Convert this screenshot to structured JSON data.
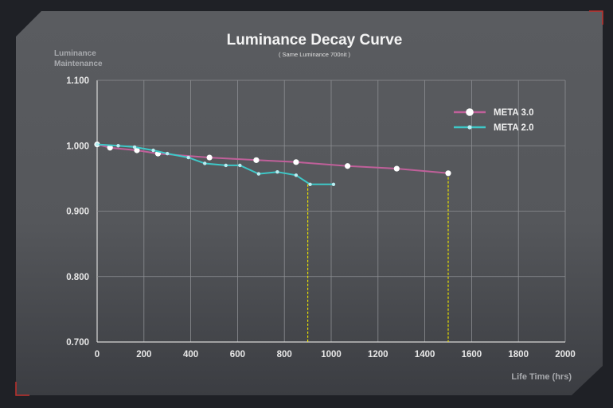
{
  "chart_data": {
    "type": "line",
    "title": "Luminance Decay Curve",
    "subtitle": "( Same Luminance 700nit )",
    "ylabel_lines": [
      "Luminance",
      "Maintenance"
    ],
    "xlabel": "Life Time (hrs)",
    "xlim": [
      0,
      2000
    ],
    "ylim": [
      0.7,
      1.1
    ],
    "x_ticks": [
      0,
      200,
      400,
      600,
      800,
      1000,
      1200,
      1400,
      1600,
      1800,
      2000
    ],
    "x_tick_labels": [
      "0",
      "200",
      "400",
      "600",
      "800",
      "1000",
      "1200",
      "1400",
      "1600",
      "1800",
      "2000"
    ],
    "y_ticks": [
      0.7,
      0.8,
      0.9,
      1.0,
      1.1
    ],
    "y_tick_labels": [
      "0.700",
      "0.800",
      "0.900",
      "1.000",
      "1.100"
    ],
    "grid": true,
    "legend_position": "top-right",
    "series": [
      {
        "name": "META 3.0",
        "color": "#c0609a",
        "marker_color": "#ffffff",
        "marker": "large-dot",
        "points": [
          [
            0,
            1.002
          ],
          [
            55,
            0.997
          ],
          [
            170,
            0.993
          ],
          [
            260,
            0.988
          ],
          [
            480,
            0.982
          ],
          [
            680,
            0.978
          ],
          [
            850,
            0.975
          ],
          [
            1070,
            0.969
          ],
          [
            1280,
            0.965
          ],
          [
            1500,
            0.958
          ]
        ]
      },
      {
        "name": "META 2.0",
        "color": "#3ec8c8",
        "marker_color": "#b8eef2",
        "marker": "small-dot",
        "points": [
          [
            0,
            1.002
          ],
          [
            90,
            1.0
          ],
          [
            160,
            0.998
          ],
          [
            240,
            0.993
          ],
          [
            300,
            0.988
          ],
          [
            390,
            0.982
          ],
          [
            460,
            0.973
          ],
          [
            550,
            0.97
          ],
          [
            610,
            0.97
          ],
          [
            690,
            0.957
          ],
          [
            770,
            0.96
          ],
          [
            850,
            0.955
          ],
          [
            910,
            0.941
          ],
          [
            1010,
            0.941
          ]
        ]
      }
    ],
    "reference_lines": [
      {
        "x": 900,
        "color": "#e8e000"
      },
      {
        "x": 1500,
        "color": "#e8e000"
      }
    ]
  }
}
